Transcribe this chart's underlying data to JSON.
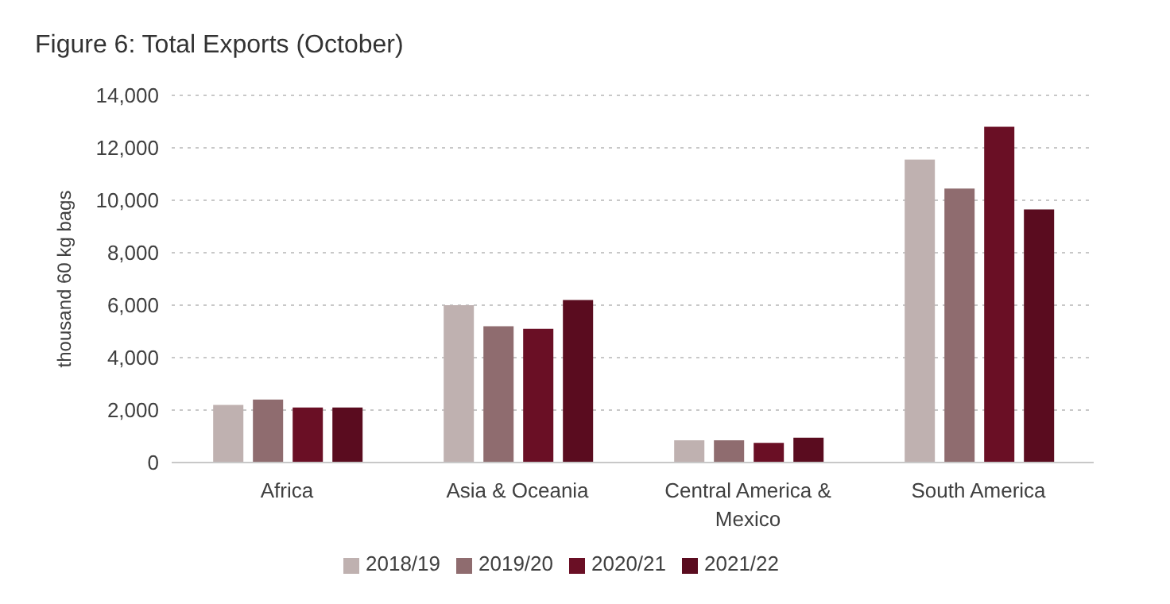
{
  "chart_data": {
    "type": "bar",
    "title": "Figure 6: Total Exports (October)",
    "ylabel": "thousand 60 kg bags",
    "categories": [
      "Africa",
      "Asia & Oceania",
      "Central America & Mexico",
      "South America"
    ],
    "series": [
      {
        "name": "2018/19",
        "color": "#bfb1b0",
        "values": [
          2200,
          6000,
          850,
          11550
        ]
      },
      {
        "name": "2019/20",
        "color": "#8f6c6f",
        "values": [
          2400,
          5200,
          850,
          10450
        ]
      },
      {
        "name": "2020/21",
        "color": "#6a0f25",
        "values": [
          2100,
          5100,
          750,
          12800
        ]
      },
      {
        "name": "2021/22",
        "color": "#5a0c1f",
        "values": [
          2100,
          6200,
          950,
          9650
        ]
      }
    ],
    "ylim": [
      0,
      14000
    ],
    "yticks": [
      0,
      {
        "value": 2000,
        "label": "2,000"
      },
      {
        "value": 4000,
        "label": "4,000"
      },
      {
        "value": 6000,
        "label": "6,000"
      },
      {
        "value": 8000,
        "label": "8,000"
      },
      {
        "value": 10000,
        "label": "10,000"
      },
      {
        "value": 12000,
        "label": "12,000"
      },
      {
        "value": 14000,
        "label": "14,000"
      }
    ],
    "grid": "y",
    "legend": "bottom"
  }
}
